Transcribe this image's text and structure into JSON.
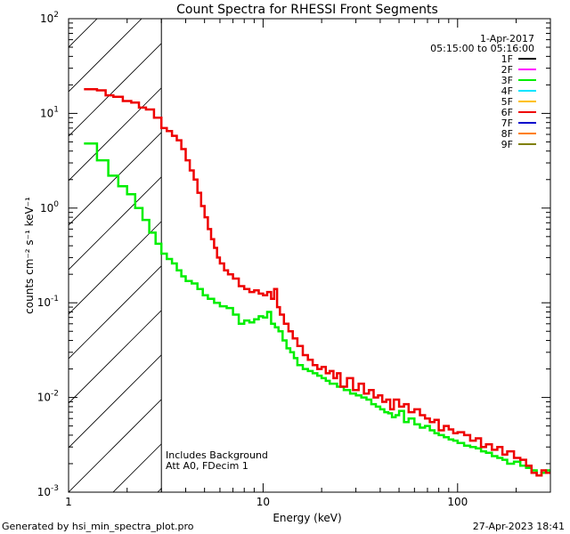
{
  "chart_data": {
    "type": "line",
    "title": "Count Spectra for RHESSI Front Segments",
    "xlabel": "Energy (keV)",
    "ylabel": "counts cm⁻² s⁻¹ keV⁻¹",
    "xscale": "log",
    "yscale": "log",
    "xlim": [
      1,
      300
    ],
    "ylim": [
      0.001,
      100
    ],
    "x_ticks": [
      {
        "value": 1,
        "label": "1"
      },
      {
        "value": 10,
        "label": "10"
      },
      {
        "value": 100,
        "label": "100"
      }
    ],
    "y_ticks": [
      {
        "value": 0.001,
        "base": "10",
        "exp": "-3"
      },
      {
        "value": 0.01,
        "base": "10",
        "exp": "-2"
      },
      {
        "value": 0.1,
        "base": "10",
        "exp": "-1"
      },
      {
        "value": 1,
        "base": "10",
        "exp": "0"
      },
      {
        "value": 10,
        "base": "10",
        "exp": "1"
      },
      {
        "value": 100,
        "base": "10",
        "exp": "2"
      }
    ],
    "date": "1-Apr-2017",
    "time_range": "05:15:00 to 05:16:00",
    "legend": [
      {
        "name": "1F",
        "color": "#000000"
      },
      {
        "name": "2F",
        "color": "#ff00ff"
      },
      {
        "name": "3F",
        "color": "#00ee00"
      },
      {
        "name": "4F",
        "color": "#00e5ff"
      },
      {
        "name": "5F",
        "color": "#ffc000"
      },
      {
        "name": "6F",
        "color": "#ee0000"
      },
      {
        "name": "7F",
        "color": "#0000cc"
      },
      {
        "name": "8F",
        "color": "#ff7f00"
      },
      {
        "name": "9F",
        "color": "#808000"
      }
    ],
    "attenuator_cutoff_kev": 3,
    "notes": [
      "Includes Background",
      "Att A0, FDecim 1"
    ],
    "series": [
      {
        "name": "6F",
        "color": "#ee0000",
        "points": [
          [
            1.2,
            18.0
          ],
          [
            1.4,
            17.5
          ],
          [
            1.55,
            15.5
          ],
          [
            1.7,
            15.0
          ],
          [
            1.9,
            13.5
          ],
          [
            2.1,
            13.0
          ],
          [
            2.3,
            11.5
          ],
          [
            2.5,
            11.0
          ],
          [
            2.75,
            9.0
          ],
          [
            3.0,
            7.0
          ],
          [
            3.2,
            6.5
          ],
          [
            3.4,
            5.8
          ],
          [
            3.6,
            5.2
          ],
          [
            3.8,
            4.2
          ],
          [
            4.0,
            3.2
          ],
          [
            4.2,
            2.5
          ],
          [
            4.4,
            2.0
          ],
          [
            4.6,
            1.45
          ],
          [
            4.8,
            1.05
          ],
          [
            5.0,
            0.8
          ],
          [
            5.2,
            0.6
          ],
          [
            5.4,
            0.47
          ],
          [
            5.6,
            0.38
          ],
          [
            5.8,
            0.3
          ],
          [
            6.0,
            0.26
          ],
          [
            6.3,
            0.22
          ],
          [
            6.6,
            0.2
          ],
          [
            7.0,
            0.18
          ],
          [
            7.5,
            0.15
          ],
          [
            8.0,
            0.14
          ],
          [
            8.5,
            0.13
          ],
          [
            9.0,
            0.135
          ],
          [
            9.5,
            0.125
          ],
          [
            10.0,
            0.12
          ],
          [
            10.5,
            0.13
          ],
          [
            11.0,
            0.11
          ],
          [
            11.4,
            0.14
          ],
          [
            11.8,
            0.09
          ],
          [
            12.2,
            0.075
          ],
          [
            12.8,
            0.06
          ],
          [
            13.5,
            0.05
          ],
          [
            14.2,
            0.042
          ],
          [
            15.0,
            0.035
          ],
          [
            16.0,
            0.028
          ],
          [
            17.0,
            0.025
          ],
          [
            18.0,
            0.022
          ],
          [
            19.0,
            0.02
          ],
          [
            20.0,
            0.021
          ],
          [
            21.0,
            0.018
          ],
          [
            22.0,
            0.019
          ],
          [
            23.0,
            0.016
          ],
          [
            24.0,
            0.018
          ],
          [
            25.0,
            0.013
          ],
          [
            27.0,
            0.016
          ],
          [
            29.0,
            0.012
          ],
          [
            31.0,
            0.014
          ],
          [
            33.0,
            0.011
          ],
          [
            35.0,
            0.012
          ],
          [
            37.0,
            0.01
          ],
          [
            39.0,
            0.0105
          ],
          [
            41.0,
            0.009
          ],
          [
            43.0,
            0.0095
          ],
          [
            45.0,
            0.0075
          ],
          [
            47.0,
            0.0095
          ],
          [
            50.0,
            0.008
          ],
          [
            53.0,
            0.0085
          ],
          [
            56.0,
            0.007
          ],
          [
            60.0,
            0.0075
          ],
          [
            64.0,
            0.0065
          ],
          [
            68.0,
            0.006
          ],
          [
            72.0,
            0.0055
          ],
          [
            76.0,
            0.0058
          ],
          [
            80.0,
            0.0045
          ],
          [
            85.0,
            0.005
          ],
          [
            90.0,
            0.0046
          ],
          [
            95.0,
            0.0042
          ],
          [
            100.0,
            0.0043
          ],
          [
            108.0,
            0.004
          ],
          [
            116.0,
            0.0035
          ],
          [
            124.0,
            0.0037
          ],
          [
            132.0,
            0.003
          ],
          [
            140.0,
            0.0032
          ],
          [
            150.0,
            0.0028
          ],
          [
            160.0,
            0.003
          ],
          [
            170.0,
            0.0025
          ],
          [
            180.0,
            0.0027
          ],
          [
            195.0,
            0.0023
          ],
          [
            210.0,
            0.0022
          ],
          [
            225.0,
            0.0019
          ],
          [
            240.0,
            0.0016
          ],
          [
            255.0,
            0.0015
          ],
          [
            270.0,
            0.0017
          ],
          [
            285.0,
            0.0016
          ],
          [
            300.0,
            0.0016
          ]
        ]
      },
      {
        "name": "3F",
        "color": "#00ee00",
        "points": [
          [
            1.2,
            4.8
          ],
          [
            1.4,
            3.2
          ],
          [
            1.6,
            2.2
          ],
          [
            1.8,
            1.7
          ],
          [
            2.0,
            1.4
          ],
          [
            2.2,
            1.0
          ],
          [
            2.4,
            0.75
          ],
          [
            2.6,
            0.55
          ],
          [
            2.8,
            0.42
          ],
          [
            3.0,
            0.33
          ],
          [
            3.2,
            0.29
          ],
          [
            3.4,
            0.26
          ],
          [
            3.6,
            0.22
          ],
          [
            3.8,
            0.19
          ],
          [
            4.0,
            0.17
          ],
          [
            4.3,
            0.16
          ],
          [
            4.6,
            0.14
          ],
          [
            4.9,
            0.12
          ],
          [
            5.2,
            0.11
          ],
          [
            5.6,
            0.1
          ],
          [
            6.0,
            0.092
          ],
          [
            6.5,
            0.088
          ],
          [
            7.0,
            0.075
          ],
          [
            7.5,
            0.06
          ],
          [
            8.0,
            0.065
          ],
          [
            8.5,
            0.062
          ],
          [
            9.0,
            0.067
          ],
          [
            9.5,
            0.072
          ],
          [
            10.0,
            0.07
          ],
          [
            10.5,
            0.08
          ],
          [
            11.0,
            0.06
          ],
          [
            11.5,
            0.055
          ],
          [
            12.0,
            0.05
          ],
          [
            12.6,
            0.04
          ],
          [
            13.2,
            0.033
          ],
          [
            13.8,
            0.03
          ],
          [
            14.4,
            0.026
          ],
          [
            15.0,
            0.022
          ],
          [
            16.0,
            0.02
          ],
          [
            17.0,
            0.019
          ],
          [
            18.0,
            0.018
          ],
          [
            19.0,
            0.017
          ],
          [
            20.0,
            0.016
          ],
          [
            21.0,
            0.015
          ],
          [
            22.0,
            0.014
          ],
          [
            23.0,
            0.014
          ],
          [
            24.0,
            0.013
          ],
          [
            26.0,
            0.012
          ],
          [
            28.0,
            0.011
          ],
          [
            30.0,
            0.0105
          ],
          [
            32.0,
            0.01
          ],
          [
            34.0,
            0.0095
          ],
          [
            36.0,
            0.0085
          ],
          [
            38.0,
            0.008
          ],
          [
            40.0,
            0.0075
          ],
          [
            42.0,
            0.007
          ],
          [
            44.0,
            0.0068
          ],
          [
            46.0,
            0.0062
          ],
          [
            48.0,
            0.0065
          ],
          [
            50.0,
            0.0072
          ],
          [
            53.0,
            0.0055
          ],
          [
            56.0,
            0.006
          ],
          [
            60.0,
            0.0052
          ],
          [
            64.0,
            0.0048
          ],
          [
            68.0,
            0.005
          ],
          [
            72.0,
            0.0045
          ],
          [
            76.0,
            0.0042
          ],
          [
            80.0,
            0.004
          ],
          [
            85.0,
            0.0038
          ],
          [
            90.0,
            0.0036
          ],
          [
            95.0,
            0.0035
          ],
          [
            100.0,
            0.0033
          ],
          [
            108.0,
            0.0031
          ],
          [
            116.0,
            0.003
          ],
          [
            124.0,
            0.0029
          ],
          [
            132.0,
            0.0027
          ],
          [
            140.0,
            0.0026
          ],
          [
            150.0,
            0.0024
          ],
          [
            160.0,
            0.0023
          ],
          [
            170.0,
            0.0022
          ],
          [
            180.0,
            0.002
          ],
          [
            195.0,
            0.0021
          ],
          [
            210.0,
            0.0019
          ],
          [
            225.0,
            0.0018
          ],
          [
            240.0,
            0.0017
          ],
          [
            255.0,
            0.0015
          ],
          [
            270.0,
            0.0016
          ],
          [
            285.0,
            0.0017
          ],
          [
            300.0,
            0.0016
          ]
        ]
      }
    ]
  },
  "footer": {
    "generated_by": "Generated by hsi_min_spectra_plot.pro",
    "timestamp": "27-Apr-2023 18:41"
  }
}
